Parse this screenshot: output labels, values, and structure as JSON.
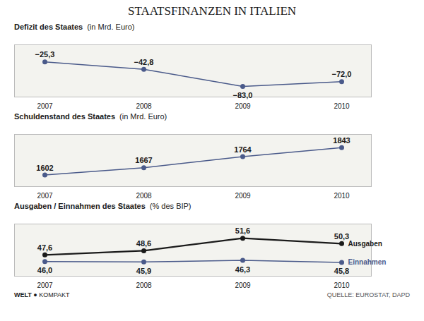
{
  "title": "STAATSFINANZEN IN ITALIEN",
  "annotations": [
    "WELT",
    "● KOMPAKT",
    "QUELLE: EUROSTAT, DAPD"
  ],
  "chart_data": [
    {
      "type": "line",
      "title": "Defizit des Staates",
      "subtitle": "(in Mrd. Euro)",
      "categories": [
        "2007",
        "2008",
        "2009",
        "2010"
      ],
      "values": [
        -25.3,
        -42.8,
        -83.0,
        -72.0
      ],
      "value_labels": [
        "−25,3",
        "−42,8",
        "−83,0",
        "−72,0"
      ],
      "color": "#4a5a8a",
      "marker": "circle",
      "ylim": [
        -108,
        15
      ],
      "tick_labels": "x",
      "grid": false,
      "data_labels": true
    },
    {
      "type": "line",
      "title": "Schuldenstand des Staates",
      "subtitle": "(in Mrd. Euro)",
      "categories": [
        "2007",
        "2008",
        "2009",
        "2010"
      ],
      "values": [
        1602,
        1667,
        1764,
        1843
      ],
      "color": "#4a5a8a",
      "marker": "circle",
      "ylim": [
        1500,
        1960
      ],
      "tick_labels": "x",
      "grid": false,
      "data_labels": true
    },
    {
      "type": "line",
      "title": "Ausgaben / Einnahmen des Staates",
      "subtitle": "(% des BIP)",
      "categories": [
        "2007",
        "2008",
        "2009",
        "2010"
      ],
      "series": [
        {
          "name": "Ausgaben",
          "color": "#1a1a1a",
          "values": [
            47.6,
            48.6,
            51.6,
            50.3
          ],
          "value_labels": [
            "47,6",
            "48,6",
            "51,6",
            "50,3"
          ]
        },
        {
          "name": "Einnahmen",
          "color": "#4a5a8a",
          "values": [
            46.0,
            45.9,
            46.3,
            45.8
          ],
          "value_labels": [
            "46,0",
            "45,9",
            "46,3",
            "45,8"
          ]
        }
      ],
      "marker": "circle",
      "ylim": [
        42.5,
        55.0
      ],
      "tick_labels": "x",
      "grid": false,
      "data_labels": true
    }
  ]
}
